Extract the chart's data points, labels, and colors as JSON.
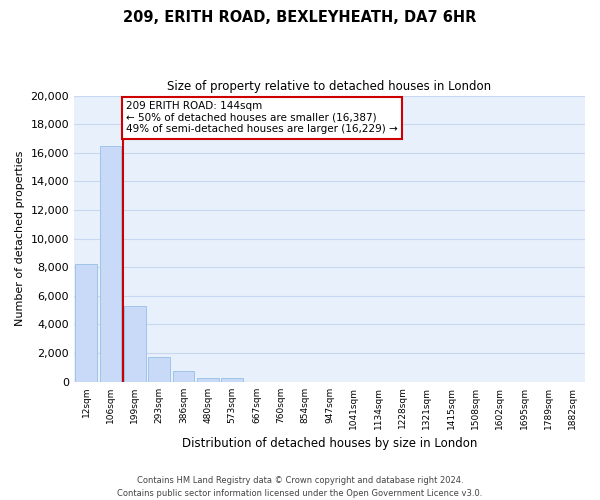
{
  "title": "209, ERITH ROAD, BEXLEYHEATH, DA7 6HR",
  "subtitle": "Size of property relative to detached houses in London",
  "xlabel": "Distribution of detached houses by size in London",
  "ylabel": "Number of detached properties",
  "bar_labels": [
    "12sqm",
    "106sqm",
    "199sqm",
    "293sqm",
    "386sqm",
    "480sqm",
    "573sqm",
    "667sqm",
    "760sqm",
    "854sqm",
    "947sqm",
    "1041sqm",
    "1134sqm",
    "1228sqm",
    "1321sqm",
    "1415sqm",
    "1508sqm",
    "1602sqm",
    "1695sqm",
    "1789sqm",
    "1882sqm"
  ],
  "bar_values": [
    8200,
    16500,
    5300,
    1750,
    750,
    280,
    260,
    0,
    0,
    0,
    0,
    0,
    0,
    0,
    0,
    0,
    0,
    0,
    0,
    0,
    0
  ],
  "bar_color": "#c9daf8",
  "bar_edge_color": "#9fc5e8",
  "marker_color": "#cc0000",
  "annotation_title": "209 ERITH ROAD: 144sqm",
  "annotation_line1": "← 50% of detached houses are smaller (16,387)",
  "annotation_line2": "49% of semi-detached houses are larger (16,229) →",
  "annotation_box_color": "#ffffff",
  "annotation_box_edge": "#cc0000",
  "ylim": [
    0,
    20000
  ],
  "yticks": [
    0,
    2000,
    4000,
    6000,
    8000,
    10000,
    12000,
    14000,
    16000,
    18000,
    20000
  ],
  "footer_line1": "Contains HM Land Registry data © Crown copyright and database right 2024.",
  "footer_line2": "Contains public sector information licensed under the Open Government Licence v3.0.",
  "bg_color": "#ffffff",
  "plot_bg_color": "#e8f0fb",
  "grid_color": "#c8d8f0"
}
